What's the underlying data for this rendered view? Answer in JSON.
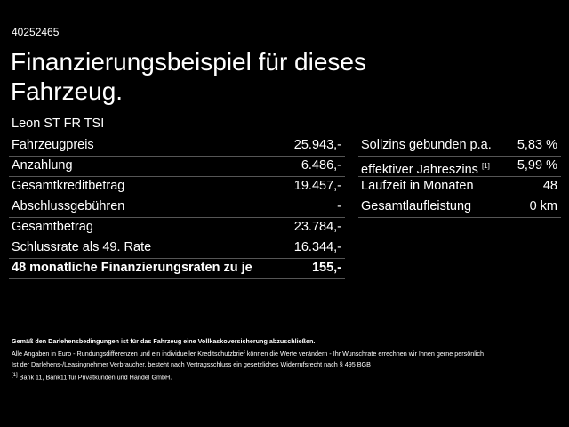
{
  "header": {
    "id": "40252465",
    "title_line1": "Finanzierungsbeispiel für dieses",
    "title_line2": "Fahrzeug."
  },
  "model": "Leon ST FR TSI",
  "left_table": {
    "rows": [
      [
        "Fahrzeugpreis",
        "25.943,-"
      ],
      [
        "Anzahlung",
        "6.486,-"
      ],
      [
        "Gesamtkreditbetrag",
        "19.457,-"
      ],
      [
        "Abschlussgebühren",
        "-"
      ],
      [
        "Gesamtbetrag",
        "23.784,-"
      ],
      [
        "Schlussrate als 49. Rate",
        "16.344,-"
      ],
      [
        "48 monatliche Finanzierungsraten zu je",
        "155,-"
      ]
    ]
  },
  "right_table": {
    "rows": [
      [
        "Sollzins gebunden p.a.",
        "5,83 %"
      ],
      [
        "effektiver Jahreszins",
        "5,99 %"
      ],
      [
        "Laufzeit in Monaten",
        "48"
      ],
      [
        "Gesamtlaufleistung",
        "0 km"
      ]
    ],
    "note_ref": "[1]"
  },
  "footer": {
    "bold_note": "Gemäß den Darlehensbedingungen ist für das Fahrzeug eine Vollkaskoversicherung abzuschließen.",
    "line1": "Alle Angaben in Euro - Rundungsdifferenzen und ein individueller Kreditschutzbrief können die Werte verändern - Ihr Wunschrate errechnen wir Ihnen gerne persönlich",
    "line2": "Ist der Darlehens-/Leasingnehmer Verbraucher, besteht nach Vertragsschluss ein gesetzliches Widerrufsrecht nach § 495 BGB",
    "footnote_ref": "[1]",
    "footnote": "Bank 11, Bank11 für Privatkunden und Handel GmbH."
  }
}
